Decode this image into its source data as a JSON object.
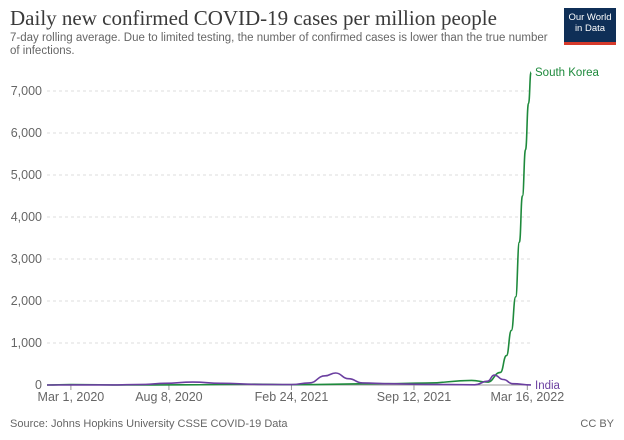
{
  "chart_title": "Daily new confirmed COVID-19 cases per million people",
  "chart_subtitle": "7-day rolling average. Due to limited testing, the number of confirmed cases is lower than the true number of infections.",
  "logo": {
    "line1": "Our World",
    "line2": "in Data"
  },
  "source": "Source: Johns Hopkins University CSSE COVID-19 Data",
  "license": "CC BY",
  "colors": {
    "south_korea": "#1e8a3c",
    "india": "#6b3fa0",
    "grid": "#dddddd",
    "axis": "#555555"
  },
  "chart_data": {
    "type": "line",
    "title": "Daily new confirmed COVID-19 cases per million people",
    "subtitle": "7-day rolling average. Due to limited testing, the number of confirmed cases is lower than the true number of infections.",
    "xlabel": "",
    "ylabel": "",
    "ylim": [
      0,
      7500
    ],
    "xlim": [
      "2020-01-22",
      "2022-03-22"
    ],
    "x_ticks": [
      {
        "date": "2020-03-01",
        "label": "Mar 1, 2020"
      },
      {
        "date": "2020-08-08",
        "label": "Aug 8, 2020"
      },
      {
        "date": "2021-02-24",
        "label": "Feb 24, 2021"
      },
      {
        "date": "2021-09-12",
        "label": "Sep 12, 2021"
      },
      {
        "date": "2022-03-16",
        "label": "Mar 16, 2022"
      }
    ],
    "y_ticks": [
      {
        "value": 0,
        "label": "0"
      },
      {
        "value": 1000,
        "label": "1,000"
      },
      {
        "value": 2000,
        "label": "2,000"
      },
      {
        "value": 3000,
        "label": "3,000"
      },
      {
        "value": 4000,
        "label": "4,000"
      },
      {
        "value": 5000,
        "label": "5,000"
      },
      {
        "value": 6000,
        "label": "6,000"
      },
      {
        "value": 7000,
        "label": "7,000"
      }
    ],
    "grid": true,
    "series": [
      {
        "name": "South Korea",
        "label": "South Korea",
        "color": "#1e8a3c",
        "points": [
          [
            "2020-01-22",
            0
          ],
          [
            "2020-03-01",
            12
          ],
          [
            "2020-06-01",
            1
          ],
          [
            "2020-09-01",
            5
          ],
          [
            "2020-12-25",
            20
          ],
          [
            "2021-02-24",
            8
          ],
          [
            "2021-07-25",
            30
          ],
          [
            "2021-10-01",
            45
          ],
          [
            "2021-12-15",
            110
          ],
          [
            "2022-01-10",
            70
          ],
          [
            "2022-01-31",
            300
          ],
          [
            "2022-02-10",
            700
          ],
          [
            "2022-02-18",
            1300
          ],
          [
            "2022-02-25",
            2100
          ],
          [
            "2022-03-03",
            3400
          ],
          [
            "2022-03-08",
            4500
          ],
          [
            "2022-03-13",
            5600
          ],
          [
            "2022-03-18",
            6700
          ],
          [
            "2022-03-22",
            7450
          ]
        ]
      },
      {
        "name": "India",
        "label": "India",
        "color": "#6b3fa0",
        "points": [
          [
            "2020-01-22",
            0
          ],
          [
            "2020-05-01",
            2
          ],
          [
            "2020-07-01",
            15
          ],
          [
            "2020-08-01",
            40
          ],
          [
            "2020-09-16",
            70
          ],
          [
            "2020-11-01",
            40
          ],
          [
            "2021-01-01",
            15
          ],
          [
            "2021-02-24",
            10
          ],
          [
            "2021-03-25",
            50
          ],
          [
            "2021-04-20",
            220
          ],
          [
            "2021-05-07",
            285
          ],
          [
            "2021-05-28",
            150
          ],
          [
            "2021-06-20",
            50
          ],
          [
            "2021-08-01",
            30
          ],
          [
            "2021-10-01",
            15
          ],
          [
            "2021-12-20",
            5
          ],
          [
            "2022-01-10",
            90
          ],
          [
            "2022-01-21",
            235
          ],
          [
            "2022-02-05",
            130
          ],
          [
            "2022-02-20",
            30
          ],
          [
            "2022-03-22",
            2
          ]
        ]
      }
    ]
  }
}
